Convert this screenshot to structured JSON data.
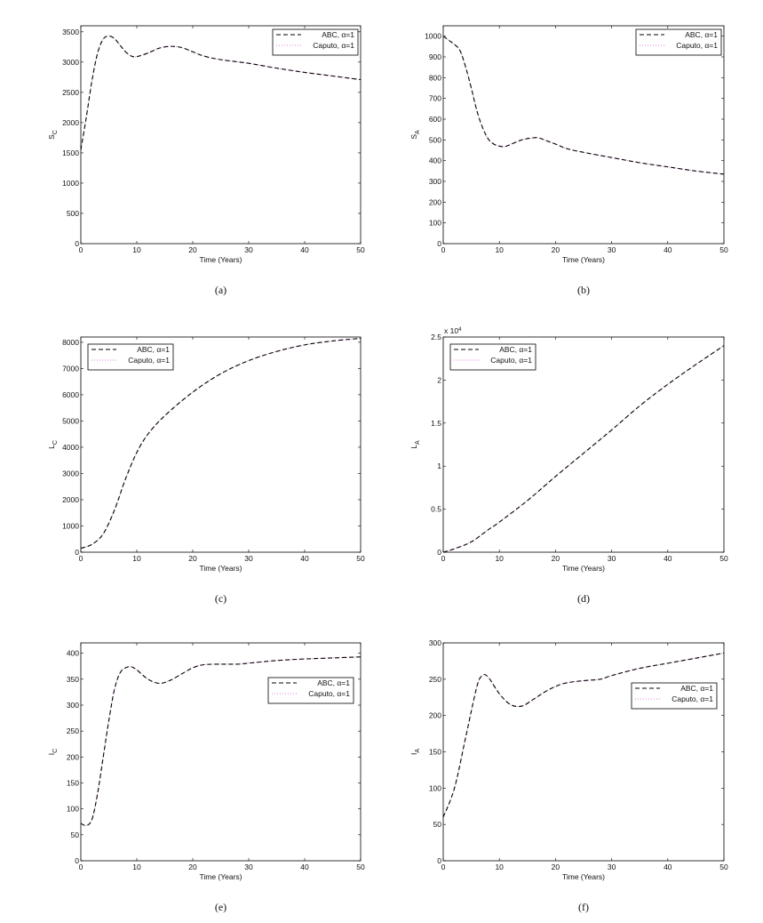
{
  "chart_data": [
    {
      "panel": "(a)",
      "type": "line",
      "xlabel": "Time (Years)",
      "ylabel": {
        "main": "S",
        "sub": "C"
      },
      "xlim": [
        0,
        50
      ],
      "ylim": [
        0,
        3600
      ],
      "xticks": [
        0,
        10,
        20,
        30,
        40,
        50
      ],
      "yticks": [
        0,
        500,
        1000,
        1500,
        2000,
        2500,
        3000,
        3500
      ],
      "legend_placement": "top-right",
      "multiplier": "",
      "x": [
        0,
        1,
        2,
        3,
        4,
        5,
        6,
        7,
        8,
        9,
        10,
        12,
        14,
        16,
        18,
        20,
        22,
        25,
        30,
        35,
        40,
        45,
        50
      ],
      "y": [
        1550,
        2100,
        2700,
        3150,
        3380,
        3430,
        3390,
        3280,
        3170,
        3100,
        3090,
        3150,
        3230,
        3260,
        3240,
        3170,
        3100,
        3040,
        2980,
        2900,
        2830,
        2770,
        2710
      ]
    },
    {
      "panel": "(b)",
      "type": "line",
      "xlabel": "Time (Years)",
      "ylabel": {
        "main": "S",
        "sub": "A"
      },
      "xlim": [
        0,
        50
      ],
      "ylim": [
        0,
        1050
      ],
      "xticks": [
        0,
        10,
        20,
        30,
        40,
        50
      ],
      "yticks": [
        0,
        100,
        200,
        300,
        400,
        500,
        600,
        700,
        800,
        900,
        1000
      ],
      "legend_placement": "top-right",
      "multiplier": "",
      "x": [
        0,
        1,
        2,
        3,
        4,
        5,
        6,
        7,
        8,
        9,
        10,
        11,
        12,
        14,
        16,
        17,
        18,
        20,
        22,
        25,
        30,
        35,
        40,
        45,
        50
      ],
      "y": [
        1000,
        980,
        960,
        930,
        850,
        750,
        640,
        560,
        505,
        480,
        470,
        468,
        478,
        500,
        510,
        510,
        500,
        480,
        458,
        440,
        415,
        390,
        370,
        350,
        335
      ]
    },
    {
      "panel": "(c)",
      "type": "line",
      "xlabel": "Time (Years)",
      "ylabel": {
        "main": "L",
        "sub": "C"
      },
      "xlim": [
        0,
        50
      ],
      "ylim": [
        0,
        8200
      ],
      "xticks": [
        0,
        10,
        20,
        30,
        40,
        50
      ],
      "yticks": [
        0,
        1000,
        2000,
        3000,
        4000,
        5000,
        6000,
        7000,
        8000
      ],
      "legend_placement": "top-left",
      "multiplier": "",
      "x": [
        0,
        2,
        4,
        6,
        8,
        10,
        12,
        15,
        20,
        25,
        30,
        35,
        40,
        45,
        50
      ],
      "y": [
        150,
        300,
        700,
        1600,
        2800,
        3800,
        4500,
        5200,
        6100,
        6800,
        7300,
        7650,
        7900,
        8050,
        8150
      ]
    },
    {
      "panel": "(d)",
      "type": "line",
      "xlabel": "Time (Years)",
      "ylabel": {
        "main": "L",
        "sub": "A"
      },
      "xlim": [
        0,
        50
      ],
      "ylim": [
        0,
        2.5
      ],
      "xticks": [
        0,
        10,
        20,
        30,
        40,
        50
      ],
      "yticks": [
        0,
        0.5,
        1,
        1.5,
        2,
        2.5
      ],
      "legend_placement": "top-left",
      "multiplier": {
        "base": "x 10",
        "exp": "4"
      },
      "x": [
        0,
        2,
        5,
        8,
        10,
        15,
        20,
        25,
        30,
        35,
        40,
        45,
        50
      ],
      "y": [
        0,
        0.04,
        0.12,
        0.26,
        0.35,
        0.6,
        0.88,
        1.15,
        1.42,
        1.7,
        1.95,
        2.18,
        2.4
      ]
    },
    {
      "panel": "(e)",
      "type": "line",
      "xlabel": "Time (Years)",
      "ylabel": {
        "main": "I",
        "sub": "C"
      },
      "xlim": [
        0,
        50
      ],
      "ylim": [
        0,
        420
      ],
      "xticks": [
        0,
        10,
        20,
        30,
        40,
        50
      ],
      "yticks": [
        0,
        50,
        100,
        150,
        200,
        250,
        300,
        350,
        400
      ],
      "legend_placement": "right",
      "multiplier": "",
      "x": [
        0,
        1,
        2,
        3,
        4,
        5,
        6,
        7,
        8,
        9,
        10,
        12,
        14,
        16,
        18,
        20,
        22,
        25,
        28,
        30,
        35,
        40,
        45,
        50
      ],
      "y": [
        72,
        68,
        80,
        130,
        200,
        270,
        330,
        362,
        372,
        374,
        368,
        350,
        342,
        348,
        360,
        372,
        378,
        379,
        379,
        381,
        386,
        389,
        391,
        393
      ]
    },
    {
      "panel": "(f)",
      "type": "line",
      "xlabel": "Time (Years)",
      "ylabel": {
        "main": "I",
        "sub": "A"
      },
      "xlim": [
        0,
        50
      ],
      "ylim": [
        0,
        300
      ],
      "xticks": [
        0,
        10,
        20,
        30,
        40,
        50
      ],
      "yticks": [
        0,
        50,
        100,
        150,
        200,
        250,
        300
      ],
      "legend_placement": "right",
      "multiplier": "",
      "x": [
        0,
        2,
        4,
        6,
        7,
        8,
        10,
        12,
        14,
        16,
        18,
        20,
        22,
        25,
        28,
        30,
        35,
        40,
        45,
        50
      ],
      "y": [
        60,
        100,
        170,
        240,
        255,
        253,
        230,
        215,
        213,
        222,
        232,
        240,
        245,
        248,
        250,
        255,
        265,
        272,
        279,
        286
      ]
    }
  ],
  "legend": [
    {
      "name": "ABC, α=1",
      "style": "dashed",
      "color": "#000000"
    },
    {
      "name": "Caputo, α=1",
      "style": "dotted",
      "color": "#e07ae0"
    }
  ]
}
